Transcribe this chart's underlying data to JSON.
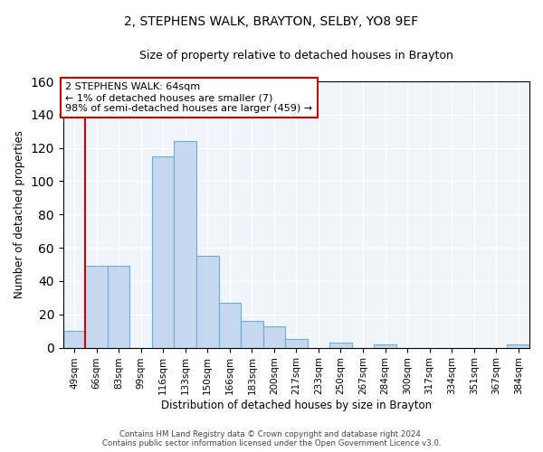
{
  "title": "2, STEPHENS WALK, BRAYTON, SELBY, YO8 9EF",
  "subtitle": "Size of property relative to detached houses in Brayton",
  "xlabel": "Distribution of detached houses by size in Brayton",
  "ylabel": "Number of detached properties",
  "bar_labels": [
    "49sqm",
    "66sqm",
    "83sqm",
    "99sqm",
    "116sqm",
    "133sqm",
    "150sqm",
    "166sqm",
    "183sqm",
    "200sqm",
    "217sqm",
    "233sqm",
    "250sqm",
    "267sqm",
    "284sqm",
    "300sqm",
    "317sqm",
    "334sqm",
    "351sqm",
    "367sqm",
    "384sqm"
  ],
  "bar_values": [
    10,
    49,
    49,
    0,
    115,
    124,
    55,
    27,
    16,
    13,
    5,
    0,
    3,
    0,
    2,
    0,
    0,
    0,
    0,
    0,
    2
  ],
  "bar_color": "#c5d8ef",
  "bar_edge_color": "#6baed6",
  "ylim": [
    0,
    160
  ],
  "yticks": [
    0,
    20,
    40,
    60,
    80,
    100,
    120,
    140,
    160
  ],
  "property_line_color": "#cc0000",
  "annotation_text": "2 STEPHENS WALK: 64sqm\n← 1% of detached houses are smaller (7)\n98% of semi-detached houses are larger (459) →",
  "annotation_box_color": "#ffffff",
  "annotation_box_edge": "#cc0000",
  "footer_line1": "Contains HM Land Registry data © Crown copyright and database right 2024.",
  "footer_line2": "Contains public sector information licensed under the Open Government Licence v3.0.",
  "bg_color": "#f0f4fb"
}
